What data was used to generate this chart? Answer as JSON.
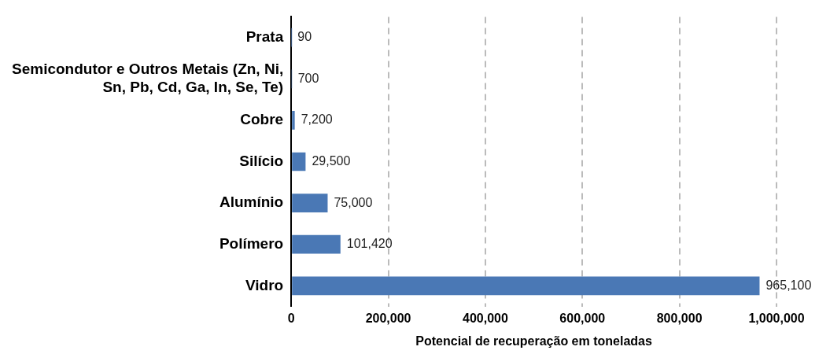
{
  "chart_data": {
    "type": "bar",
    "orientation": "horizontal",
    "xlabel": "Potencial de recuperação em toneladas",
    "categories": [
      "Prata",
      "Semicondutor e Outros Metais (Zn, Ni, Sn, Pb, Cd, Ga, In, Se, Te)",
      "Cobre",
      "Silício",
      "Alumínio",
      "Polímero",
      "Vidro"
    ],
    "values": [
      90,
      700,
      7200,
      29500,
      75000,
      101420,
      965100
    ],
    "value_labels": [
      "90",
      "700",
      "7,200",
      "29,500",
      "75,000",
      "101,420",
      "965,100"
    ],
    "color": "#4a78b5",
    "xlim": [
      0,
      1000000
    ],
    "xticks": [
      0,
      {
        "value": 200000,
        "label": "200,000"
      },
      {
        "value": 400000,
        "label": "400,000"
      },
      {
        "value": 600000,
        "label": "600,000"
      },
      {
        "value": 800000,
        "label": "800,000"
      },
      {
        "value": 1000000,
        "label": "1,000,000"
      }
    ],
    "grid": "x",
    "legend": false
  }
}
